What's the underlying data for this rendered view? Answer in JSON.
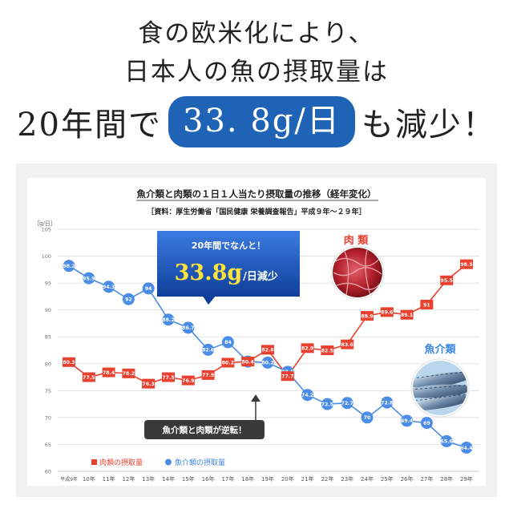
{
  "headline": {
    "line1": "食の欧米化により、",
    "line2": "日本人の魚の摂取量は",
    "line3_prefix": "20年間で",
    "line3_highlight": "33. 8g/日",
    "line3_suffix": "も減少！"
  },
  "callout": {
    "top": "20年間でなんと！",
    "big": "33.8g",
    "small": "/日減少"
  },
  "meat_label": "肉 類",
  "fish_label": "魚介類",
  "crossover_note": "魚介類と肉類が逆転！",
  "colors": {
    "meat": "#e8412f",
    "fish": "#4b8de6",
    "highlight": "#1f63b6",
    "callout": "#2060c2"
  },
  "chart_data": {
    "type": "line",
    "title": "魚介類と肉類の１日１人当たり摂取量の推移（経年変化）",
    "subtitle": "［資料：厚生労働省「国民健康 栄養調査報告」平成９年～２９年］",
    "ylabel": "［g/日］",
    "ylim": [
      60,
      105
    ],
    "yticks": [
      60,
      65,
      70,
      75,
      80,
      85,
      90,
      95,
      100,
      105
    ],
    "grid": true,
    "legend_position": "bottom-left",
    "categories": [
      "平成9年",
      "10年",
      "11年",
      "12年",
      "13年",
      "14年",
      "15年",
      "16年",
      "17年",
      "18年",
      "19年",
      "20年",
      "21年",
      "22年",
      "23年",
      "24年",
      "25年",
      "26年",
      "27年",
      "28年",
      "29年"
    ],
    "series": [
      {
        "name": "肉類の摂取量",
        "values": [
          80.3,
          77.5,
          78.4,
          78.2,
          76.3,
          77.5,
          76.9,
          77.9,
          80.2,
          80.4,
          82.6,
          77.7,
          82.9,
          82.5,
          83.6,
          88.9,
          89.6,
          89.1,
          91.0,
          95.5,
          98.5
        ]
      },
      {
        "name": "魚介類の摂取量",
        "values": [
          98.2,
          95.9,
          94.3,
          92.0,
          94.0,
          88.2,
          86.7,
          82.6,
          84.0,
          80.4,
          80.2,
          78.5,
          74.2,
          72.5,
          72.7,
          70.0,
          72.8,
          69.4,
          69.0,
          65.6,
          64.4
        ]
      }
    ]
  }
}
